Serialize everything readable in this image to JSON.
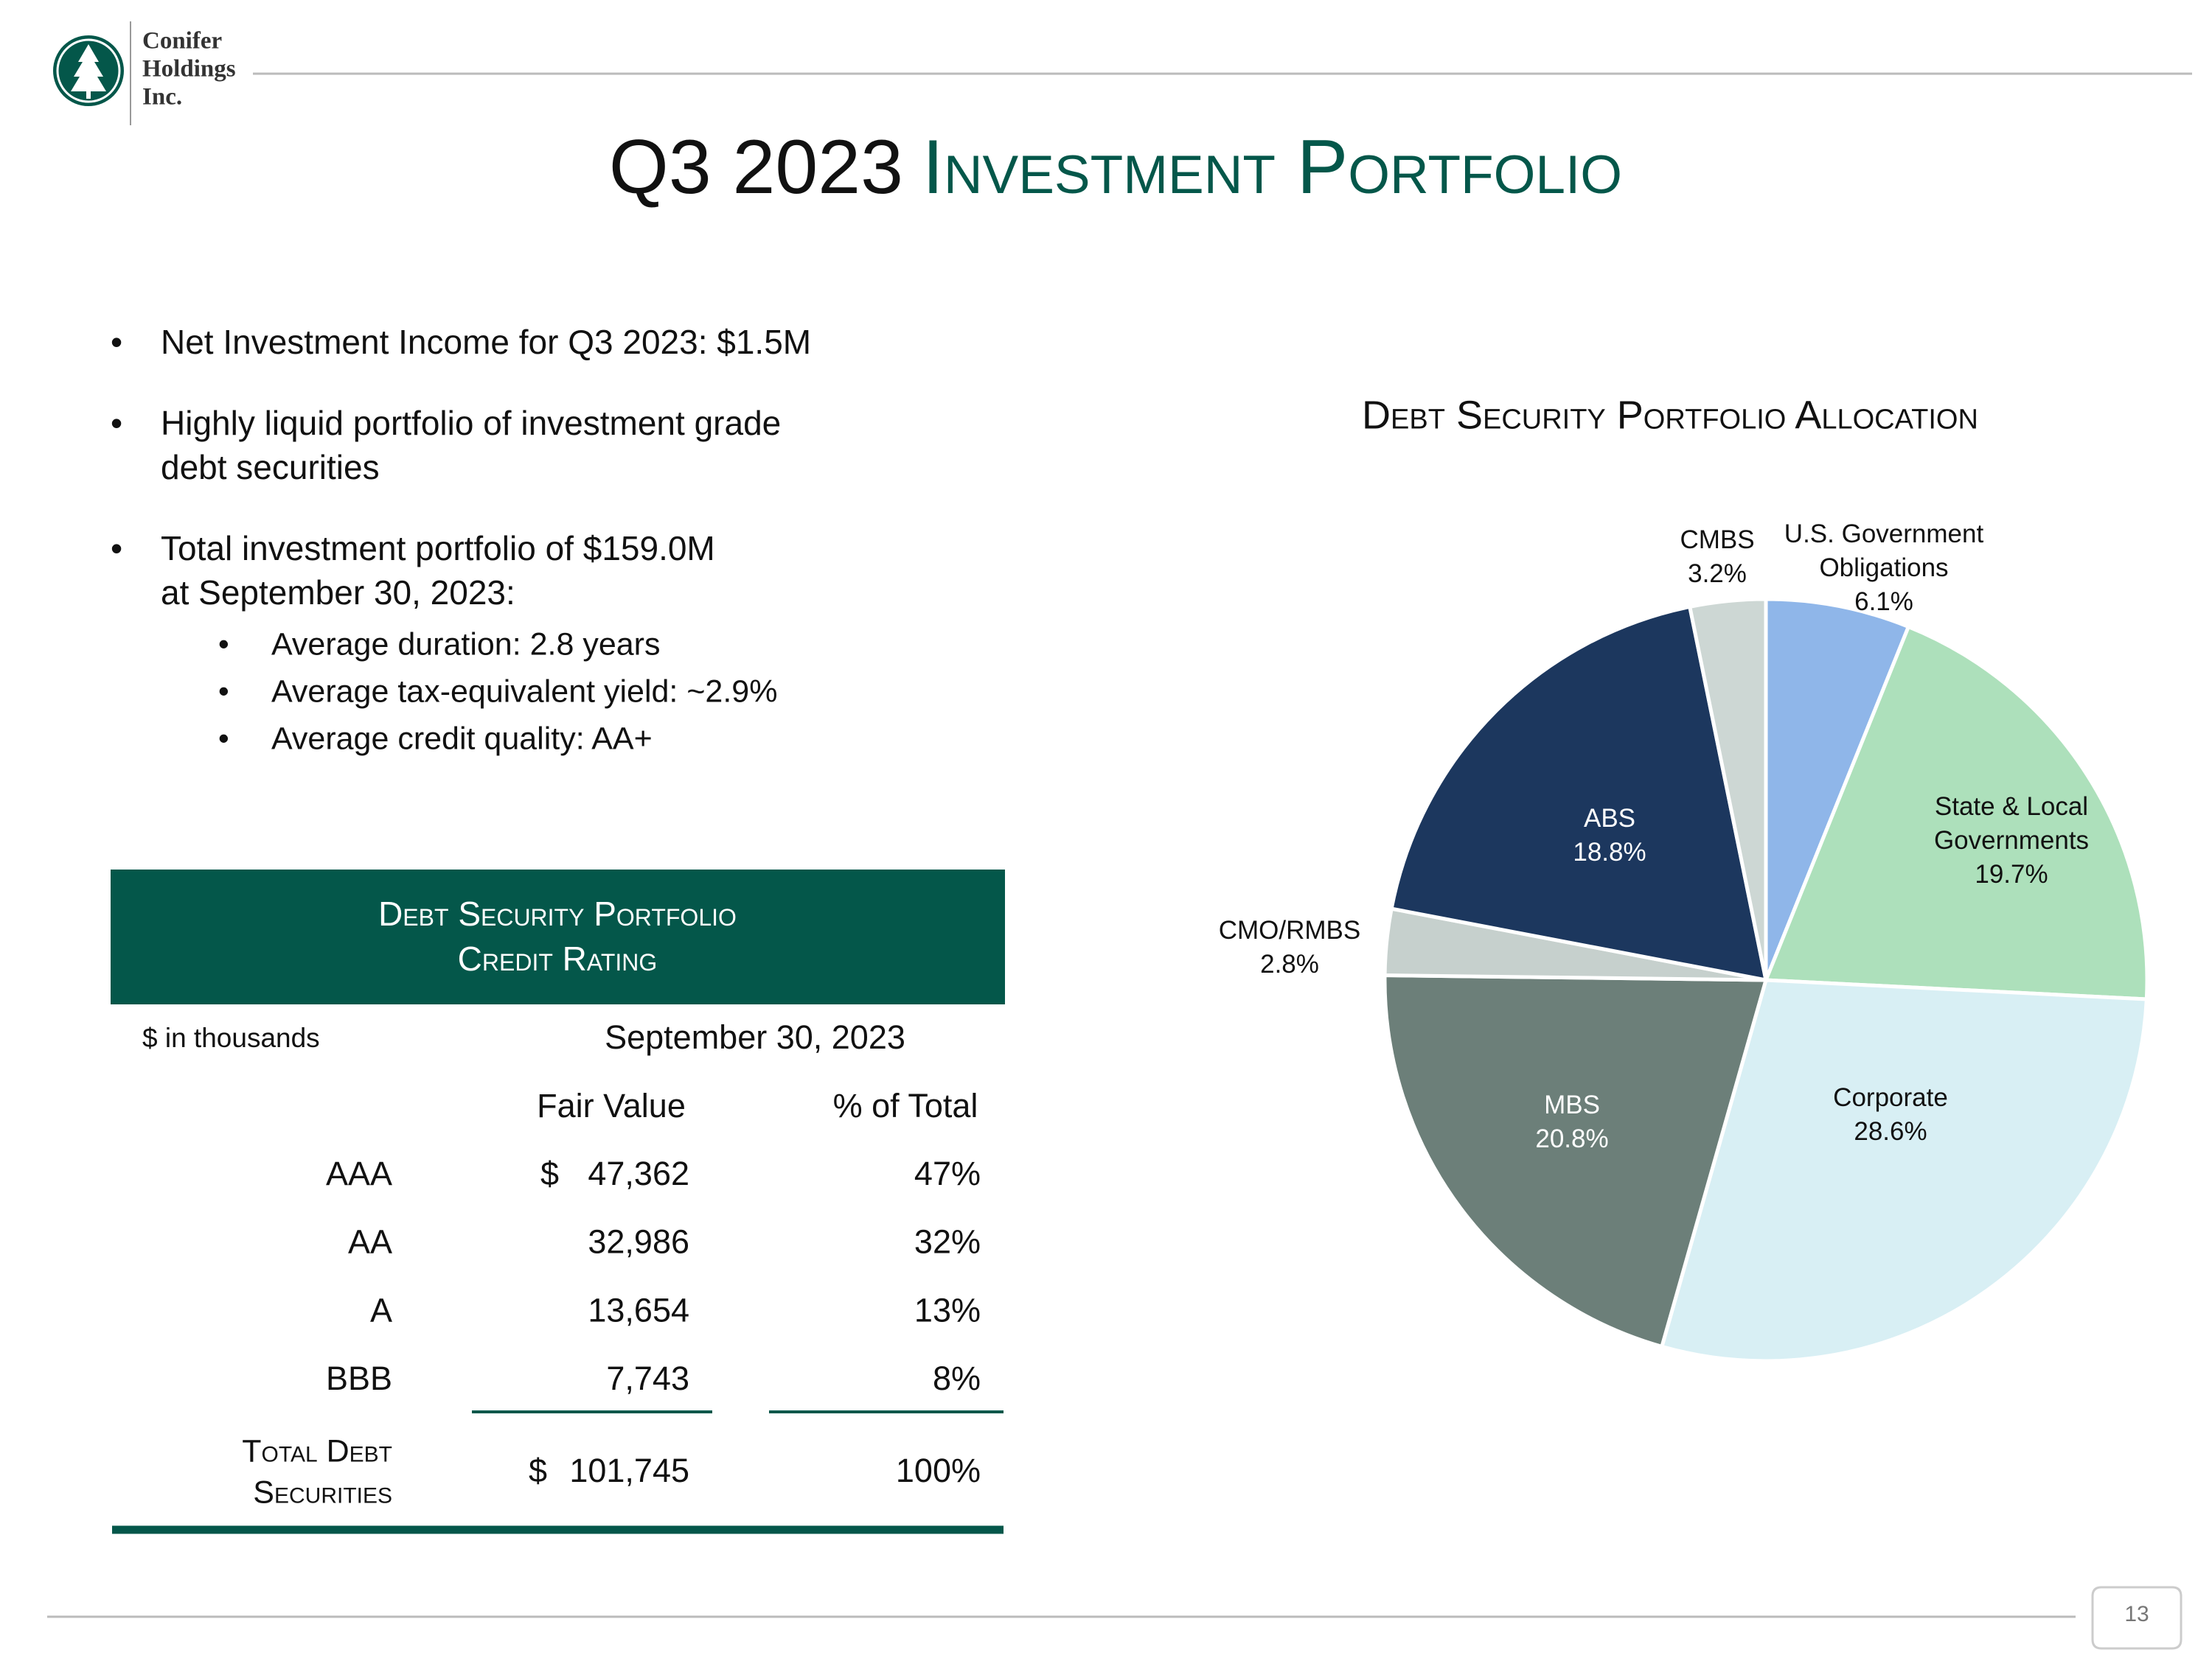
{
  "header": {
    "logo_lines": [
      "Conifer",
      "Holdings",
      "Inc."
    ],
    "title_prefix": "Q3 2023",
    "title_main": "Investment Portfolio"
  },
  "bullets": [
    {
      "lines": [
        "Net Investment Income for Q3 2023: $1.5M"
      ]
    },
    {
      "lines": [
        "Highly liquid portfolio of  investment grade",
        "debt securities"
      ]
    },
    {
      "lines": [
        "Total investment portfolio of $159.0M",
        "at September 30, 2023:"
      ],
      "sub": [
        "Average duration: 2.8 years",
        "Average tax-equivalent yield: ~2.9%",
        "Average credit quality: AA+"
      ]
    }
  ],
  "table": {
    "title_lines": [
      "Debt Security Portfolio",
      "Credit Rating"
    ],
    "unit_note": "$ in thousands",
    "date": "September 30, 2023",
    "columns": [
      "Fair Value",
      "% of Total"
    ],
    "rows": [
      {
        "rating": "AAA",
        "currency": "$",
        "fair_value": "47,362",
        "percent": "47%"
      },
      {
        "rating": "AA",
        "fair_value": "32,986",
        "percent": "32%"
      },
      {
        "rating": "A",
        "fair_value": "13,654",
        "percent": "13%"
      },
      {
        "rating": "BBB",
        "fair_value": "7,743",
        "percent": "8%"
      }
    ],
    "total": {
      "label_lines": [
        "Total Debt",
        "Securities"
      ],
      "currency": "$",
      "fair_value": "101,745",
      "percent": "100%"
    }
  },
  "chart_data": {
    "type": "pie",
    "title": "Debt Security Portfolio Allocation",
    "categories": [
      "U.S. Government Obligations",
      "State & Local Governments",
      "Corporate",
      "MBS",
      "CMO/RMBS",
      "ABS",
      "CMBS"
    ],
    "values": [
      6.1,
      19.7,
      28.6,
      20.8,
      2.8,
      18.8,
      3.2
    ],
    "value_labels": [
      "6.1%",
      "19.7%",
      "28.6%",
      "20.8%",
      "2.8%",
      "18.8%",
      "3.2%"
    ],
    "colors": [
      "#8fb6e9",
      "#ade0bb",
      "#d8eff4",
      "#6c7f79",
      "#c6d0cd",
      "#1c375e",
      "#cdd7d4"
    ]
  },
  "page_number": "13"
}
